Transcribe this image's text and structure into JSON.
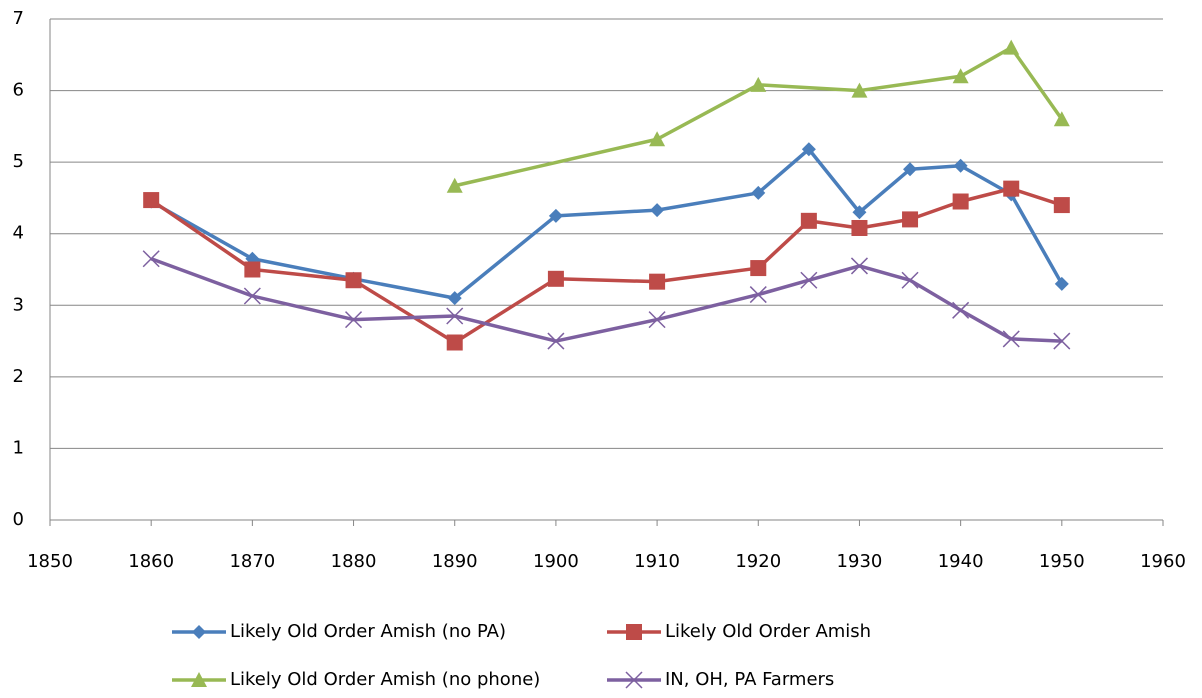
{
  "chart_data": {
    "type": "line",
    "xlim": [
      1850,
      1960
    ],
    "xticks": [
      1850,
      1860,
      1870,
      1880,
      1890,
      1900,
      1910,
      1920,
      1930,
      1940,
      1950,
      1960
    ],
    "ylim": [
      0,
      7
    ],
    "yticks": [
      0,
      1,
      2,
      3,
      4,
      5,
      6,
      7
    ],
    "grid": true,
    "legend": "bottom",
    "series": [
      {
        "name": "Likely Old Order Amish (no PA)",
        "color": "#4a7ebb",
        "marker": "diamond",
        "x": [
          1860,
          1870,
          1880,
          1890,
          1900,
          1910,
          1920,
          1925,
          1930,
          1935,
          1940,
          1945,
          1950
        ],
        "values": [
          4.45,
          3.65,
          3.37,
          3.1,
          4.25,
          4.33,
          4.57,
          5.18,
          4.3,
          4.9,
          4.95,
          4.55,
          3.3
        ]
      },
      {
        "name": "Likely Old Order Amish",
        "color": "#be4b48",
        "marker": "square",
        "x": [
          1860,
          1870,
          1880,
          1890,
          1900,
          1910,
          1920,
          1925,
          1930,
          1935,
          1940,
          1945,
          1950
        ],
        "values": [
          4.47,
          3.5,
          3.35,
          2.48,
          3.37,
          3.33,
          3.52,
          4.18,
          4.08,
          4.2,
          4.45,
          4.63,
          4.4
        ]
      },
      {
        "name": "Likely Old Order Amish (no phone)",
        "color": "#98b954",
        "marker": "triangle",
        "x": [
          1890,
          1910,
          1920,
          1930,
          1940,
          1945,
          1950
        ],
        "values": [
          4.67,
          5.32,
          6.08,
          6.0,
          6.2,
          6.6,
          5.6
        ]
      },
      {
        "name": "IN, OH, PA Farmers",
        "color": "#7d60a0",
        "marker": "x",
        "x": [
          1860,
          1870,
          1880,
          1890,
          1900,
          1910,
          1920,
          1925,
          1930,
          1935,
          1940,
          1945,
          1950
        ],
        "values": [
          3.65,
          3.13,
          2.8,
          2.85,
          2.5,
          2.8,
          3.15,
          3.35,
          3.55,
          3.35,
          2.93,
          2.53,
          2.5
        ]
      }
    ]
  }
}
